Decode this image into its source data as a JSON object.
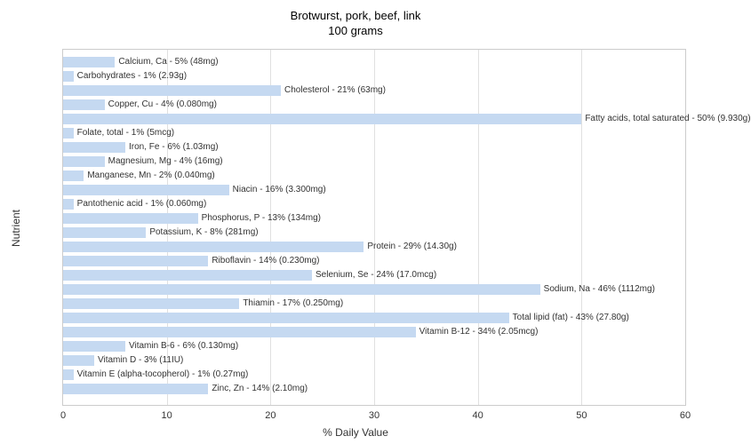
{
  "chart": {
    "type": "bar-horizontal",
    "title_line1": "Brotwurst, pork, beef, link",
    "title_line2": "100 grams",
    "title_fontsize": 13,
    "x_axis_label": "% Daily Value",
    "y_axis_label": "Nutrient",
    "label_fontsize": 12,
    "bar_label_fontsize": 10,
    "xlim": [
      0,
      60
    ],
    "xtick_step": 10,
    "background_color": "#ffffff",
    "grid_color": "#e0e0e0",
    "border_color": "#cccccc",
    "bar_color": "#c5d9f1",
    "text_color": "#333333",
    "items": [
      {
        "label": "Calcium, Ca - 5% (48mg)",
        "value": 5
      },
      {
        "label": "Carbohydrates - 1% (2.93g)",
        "value": 1
      },
      {
        "label": "Cholesterol - 21% (63mg)",
        "value": 21
      },
      {
        "label": "Copper, Cu - 4% (0.080mg)",
        "value": 4
      },
      {
        "label": "Fatty acids, total saturated - 50% (9.930g)",
        "value": 50
      },
      {
        "label": "Folate, total - 1% (5mcg)",
        "value": 1
      },
      {
        "label": "Iron, Fe - 6% (1.03mg)",
        "value": 6
      },
      {
        "label": "Magnesium, Mg - 4% (16mg)",
        "value": 4
      },
      {
        "label": "Manganese, Mn - 2% (0.040mg)",
        "value": 2
      },
      {
        "label": "Niacin - 16% (3.300mg)",
        "value": 16
      },
      {
        "label": "Pantothenic acid - 1% (0.060mg)",
        "value": 1
      },
      {
        "label": "Phosphorus, P - 13% (134mg)",
        "value": 13
      },
      {
        "label": "Potassium, K - 8% (281mg)",
        "value": 8
      },
      {
        "label": "Protein - 29% (14.30g)",
        "value": 29
      },
      {
        "label": "Riboflavin - 14% (0.230mg)",
        "value": 14
      },
      {
        "label": "Selenium, Se - 24% (17.0mcg)",
        "value": 24
      },
      {
        "label": "Sodium, Na - 46% (1112mg)",
        "value": 46
      },
      {
        "label": "Thiamin - 17% (0.250mg)",
        "value": 17
      },
      {
        "label": "Total lipid (fat) - 43% (27.80g)",
        "value": 43
      },
      {
        "label": "Vitamin B-12 - 34% (2.05mcg)",
        "value": 34
      },
      {
        "label": "Vitamin B-6 - 6% (0.130mg)",
        "value": 6
      },
      {
        "label": "Vitamin D - 3% (11IU)",
        "value": 3
      },
      {
        "label": "Vitamin E (alpha-tocopherol) - 1% (0.27mg)",
        "value": 1
      },
      {
        "label": "Zinc, Zn - 14% (2.10mg)",
        "value": 14
      }
    ]
  }
}
